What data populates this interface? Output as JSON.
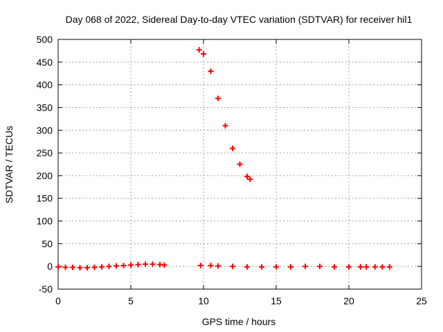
{
  "chart_data": {
    "type": "scatter",
    "title": "Day 068 of 2022, Sidereal Day-to-day VTEC variation (SDTVAR) for receiver hil1",
    "xlabel": "GPS time / hours",
    "ylabel": "SDTVAR / TECUs",
    "xlim": [
      0,
      25
    ],
    "ylim": [
      -50,
      500
    ],
    "xticks": [
      "0",
      "5",
      "10",
      "15",
      "20",
      "25"
    ],
    "yticks": [
      "-50",
      "0",
      "50",
      "100",
      "150",
      "200",
      "250",
      "300",
      "350",
      "400",
      "450",
      "500"
    ],
    "grid": true,
    "marker": "+",
    "series": [
      {
        "color": "#ff0000",
        "x": [
          0.0,
          0.5,
          1.0,
          1.5,
          2.0,
          2.5,
          3.0,
          3.5,
          4.0,
          4.5,
          5.0,
          5.5,
          6.0,
          6.5,
          7.0,
          7.3,
          9.7,
          10.0,
          10.5,
          11.0,
          11.5,
          12.0,
          12.5,
          13.0,
          13.2,
          9.8,
          10.5,
          11.0,
          12.0,
          13.0,
          14.0,
          15.0,
          16.0,
          17.0,
          18.0,
          19.0,
          20.0,
          20.8,
          21.2,
          21.8,
          22.3,
          22.8
        ],
        "y": [
          -1,
          -2,
          -2,
          -3,
          -3,
          -2,
          -1,
          0,
          1,
          2,
          3,
          4,
          5,
          5,
          4,
          3,
          477,
          468,
          430,
          370,
          310,
          260,
          225,
          198,
          192,
          2,
          2,
          1,
          0,
          -1,
          -1,
          -1,
          -1,
          0,
          0,
          -1,
          -1,
          -1,
          -1,
          -1,
          -1,
          -1
        ]
      }
    ]
  }
}
